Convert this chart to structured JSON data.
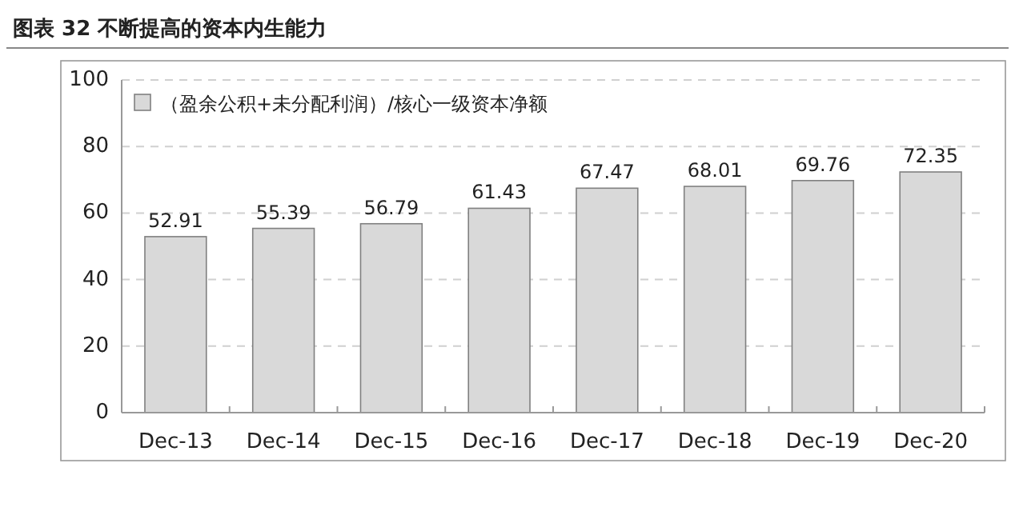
{
  "chart_data": {
    "type": "bar",
    "title": "图表 32 不断提高的资本内生能力",
    "categories": [
      "Dec-13",
      "Dec-14",
      "Dec-15",
      "Dec-16",
      "Dec-17",
      "Dec-18",
      "Dec-19",
      "Dec-20"
    ],
    "series": [
      {
        "name": "（盈余公积+未分配利润）/核心一级资本净额",
        "color": "#d9d9d9",
        "values": [
          52.91,
          55.39,
          56.79,
          61.43,
          67.47,
          68.01,
          69.76,
          72.35
        ]
      }
    ],
    "ylim": [
      0,
      100
    ],
    "yticks": [
      0,
      20,
      40,
      60,
      80,
      100
    ],
    "data_labels": true,
    "grid": "y",
    "legend": "top left"
  }
}
